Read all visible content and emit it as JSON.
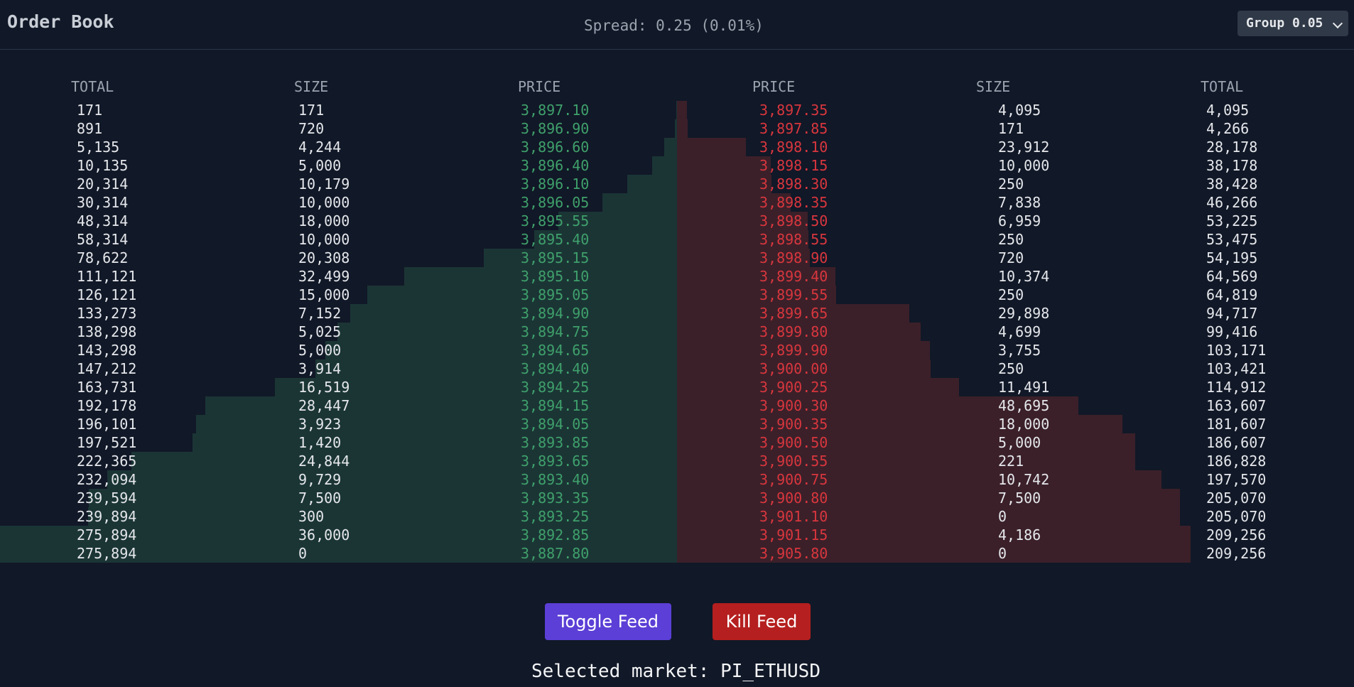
{
  "header": {
    "title": "Order Book",
    "spread": "Spread: 0.25 (0.01%)",
    "group_label": "Group 0.05"
  },
  "bids": {
    "headers": {
      "total": "TOTAL",
      "size": "SIZE",
      "price": "PRICE"
    },
    "rows": [
      {
        "total": "171",
        "size": "171",
        "price": "3,897.10",
        "depth": 0.0006
      },
      {
        "total": "891",
        "size": "720",
        "price": "3,896.90",
        "depth": 0.0032
      },
      {
        "total": "5,135",
        "size": "4,244",
        "price": "3,896.60",
        "depth": 0.0186
      },
      {
        "total": "10,135",
        "size": "5,000",
        "price": "3,896.40",
        "depth": 0.0367
      },
      {
        "total": "20,314",
        "size": "10,179",
        "price": "3,896.10",
        "depth": 0.0736
      },
      {
        "total": "30,314",
        "size": "10,000",
        "price": "3,896.05",
        "depth": 0.1099
      },
      {
        "total": "48,314",
        "size": "18,000",
        "price": "3,895.55",
        "depth": 0.1751
      },
      {
        "total": "58,314",
        "size": "10,000",
        "price": "3,895.40",
        "depth": 0.2114
      },
      {
        "total": "78,622",
        "size": "20,308",
        "price": "3,895.15",
        "depth": 0.285
      },
      {
        "total": "111,121",
        "size": "32,499",
        "price": "3,895.10",
        "depth": 0.4028
      },
      {
        "total": "126,121",
        "size": "15,000",
        "price": "3,895.05",
        "depth": 0.4571
      },
      {
        "total": "133,273",
        "size": "7,152",
        "price": "3,894.90",
        "depth": 0.483
      },
      {
        "total": "138,298",
        "size": "5,025",
        "price": "3,894.75",
        "depth": 0.5013
      },
      {
        "total": "143,298",
        "size": "5,000",
        "price": "3,894.65",
        "depth": 0.5194
      },
      {
        "total": "147,212",
        "size": "3,914",
        "price": "3,894.40",
        "depth": 0.5336
      },
      {
        "total": "163,731",
        "size": "16,519",
        "price": "3,894.25",
        "depth": 0.5934
      },
      {
        "total": "192,178",
        "size": "28,447",
        "price": "3,894.15",
        "depth": 0.6966
      },
      {
        "total": "196,101",
        "size": "3,923",
        "price": "3,894.05",
        "depth": 0.7108
      },
      {
        "total": "197,521",
        "size": "1,420",
        "price": "3,893.85",
        "depth": 0.7159
      },
      {
        "total": "222,365",
        "size": "24,844",
        "price": "3,893.65",
        "depth": 0.806
      },
      {
        "total": "232,094",
        "size": "9,729",
        "price": "3,893.40",
        "depth": 0.8412
      },
      {
        "total": "239,594",
        "size": "7,500",
        "price": "3,893.35",
        "depth": 0.8684
      },
      {
        "total": "239,894",
        "size": "300",
        "price": "3,893.25",
        "depth": 0.8695
      },
      {
        "total": "275,894",
        "size": "36,000",
        "price": "3,892.85",
        "depth": 1.0
      },
      {
        "total": "275,894",
        "size": "0",
        "price": "3,887.80",
        "depth": 1.0
      }
    ]
  },
  "asks": {
    "headers": {
      "price": "PRICE",
      "size": "SIZE",
      "total": "TOTAL"
    },
    "rows": [
      {
        "price": "3,897.35",
        "size": "4,095",
        "total": "4,095",
        "depth": 0.0148
      },
      {
        "price": "3,897.85",
        "size": "171",
        "total": "4,266",
        "depth": 0.0155
      },
      {
        "price": "3,898.10",
        "size": "23,912",
        "total": "28,178",
        "depth": 0.1021
      },
      {
        "price": "3,898.15",
        "size": "10,000",
        "total": "38,178",
        "depth": 0.1384
      },
      {
        "price": "3,898.30",
        "size": "250",
        "total": "38,428",
        "depth": 0.1393
      },
      {
        "price": "3,898.35",
        "size": "7,838",
        "total": "46,266",
        "depth": 0.1677
      },
      {
        "price": "3,898.50",
        "size": "6,959",
        "total": "53,225",
        "depth": 0.1929
      },
      {
        "price": "3,898.55",
        "size": "250",
        "total": "53,475",
        "depth": 0.1938
      },
      {
        "price": "3,898.90",
        "size": "720",
        "total": "54,195",
        "depth": 0.1964
      },
      {
        "price": "3,899.40",
        "size": "10,374",
        "total": "64,569",
        "depth": 0.234
      },
      {
        "price": "3,899.55",
        "size": "250",
        "total": "64,819",
        "depth": 0.2349
      },
      {
        "price": "3,899.65",
        "size": "29,898",
        "total": "94,717",
        "depth": 0.3433
      },
      {
        "price": "3,899.80",
        "size": "4,699",
        "total": "99,416",
        "depth": 0.3603
      },
      {
        "price": "3,899.90",
        "size": "3,755",
        "total": "103,171",
        "depth": 0.374
      },
      {
        "price": "3,900.00",
        "size": "250",
        "total": "103,421",
        "depth": 0.3749
      },
      {
        "price": "3,900.25",
        "size": "11,491",
        "total": "114,912",
        "depth": 0.4165
      },
      {
        "price": "3,900.30",
        "size": "48,695",
        "total": "163,607",
        "depth": 0.593
      },
      {
        "price": "3,900.35",
        "size": "18,000",
        "total": "181,607",
        "depth": 0.6582
      },
      {
        "price": "3,900.50",
        "size": "5,000",
        "total": "186,607",
        "depth": 0.6764
      },
      {
        "price": "3,900.55",
        "size": "221",
        "total": "186,828",
        "depth": 0.6772
      },
      {
        "price": "3,900.75",
        "size": "10,742",
        "total": "197,570",
        "depth": 0.7161
      },
      {
        "price": "3,900.80",
        "size": "7,500",
        "total": "205,070",
        "depth": 0.7433
      },
      {
        "price": "3,901.10",
        "size": "0",
        "total": "205,070",
        "depth": 0.7433
      },
      {
        "price": "3,901.15",
        "size": "4,186",
        "total": "209,256",
        "depth": 0.7585
      },
      {
        "price": "3,905.80",
        "size": "0",
        "total": "209,256",
        "depth": 0.7585
      }
    ]
  },
  "controls": {
    "toggle_label": "Toggle Feed",
    "kill_label": "Kill Feed"
  },
  "footer": {
    "selected_market": "Selected market: PI_ETHUSD"
  },
  "colors": {
    "bid_price": "#3fa06b",
    "ask_price": "#d9363e",
    "bid_depth": "#1b3535",
    "ask_depth": "#3b2029",
    "toggle_button": "#5b3fd6",
    "kill_button": "#b51f1f"
  }
}
